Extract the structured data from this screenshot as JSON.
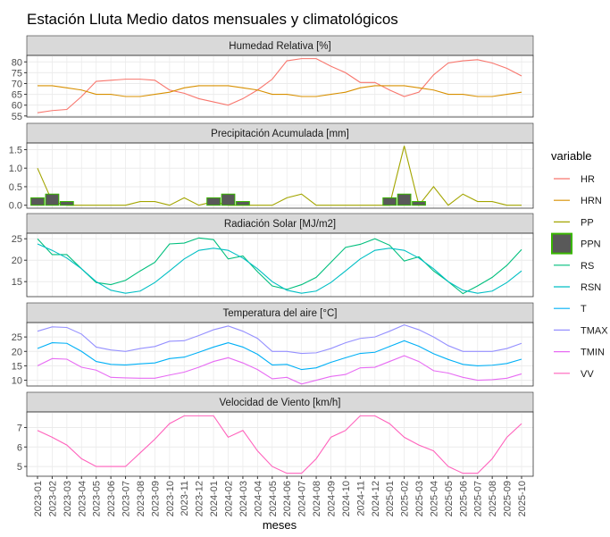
{
  "title": "Estación Lluta Medio datos mensuales y climatológicos",
  "x_label": "meses",
  "legend_title": "variable",
  "categories": [
    "2023-01",
    "2023-02",
    "2023-03",
    "2023-04",
    "2023-05",
    "2023-06",
    "2023-07",
    "2023-08",
    "2023-09",
    "2023-10",
    "2023-11",
    "2023-12",
    "2024-01",
    "2024-02",
    "2024-03",
    "2024-04",
    "2024-05",
    "2024-06",
    "2024-07",
    "2024-08",
    "2024-09",
    "2024-10",
    "2024-11",
    "2024-12",
    "2025-01",
    "2025-02",
    "2025-03",
    "2025-04",
    "2025-05",
    "2025-06",
    "2025-07",
    "2025-08",
    "2025-09",
    "2025-10"
  ],
  "chart_data": [
    {
      "type": "line",
      "title": "Humedad Relativa [%]",
      "ylim": [
        54.5,
        83
      ],
      "yticks": [
        55,
        60,
        65,
        70,
        75,
        80
      ],
      "grid": true,
      "series": [
        {
          "name": "HR",
          "color": "#F8766D",
          "values": [
            56.5,
            57.5,
            58,
            64,
            71,
            71.5,
            72,
            72,
            71.5,
            67,
            65.5,
            63,
            61.5,
            60,
            63,
            67,
            72,
            80.5,
            81.5,
            81.5,
            78,
            75,
            70.5,
            70.5,
            67,
            64,
            66,
            74,
            79.5,
            80.5,
            81,
            79.5,
            77,
            73.5
          ]
        },
        {
          "name": "HRN",
          "color": "#D89000",
          "values": [
            69,
            69,
            68,
            67,
            65,
            65,
            64,
            64,
            65,
            66,
            68,
            69,
            69,
            69,
            68,
            67,
            65,
            65,
            64,
            64,
            65,
            66,
            68,
            69,
            69,
            69,
            68,
            67,
            65,
            65,
            64,
            64,
            65,
            66
          ]
        }
      ]
    },
    {
      "type": "line",
      "title": "Precipitación Acumulada [mm]",
      "ylim": [
        -0.08,
        1.68
      ],
      "yticks": [
        {
          "value": 0,
          "label": "0.0"
        },
        0.5,
        {
          "value": 1,
          "label": "1.0"
        },
        1.5
      ],
      "grid": true,
      "series": [
        {
          "name": "PP",
          "color": "#A3A500",
          "values": [
            1.0,
            0.1,
            0,
            0,
            0,
            0,
            0,
            0.1,
            0.1,
            0,
            0.2,
            0,
            0.1,
            0,
            0,
            0,
            0,
            0.2,
            0.3,
            0,
            0,
            0,
            0,
            0,
            0,
            1.6,
            0,
            0.5,
            0,
            0.3,
            0.1,
            0.1,
            0,
            0
          ]
        },
        {
          "name": "PPN",
          "color": "#39B600",
          "fill": "#595959",
          "type": "bar",
          "values": [
            0.2,
            0.3,
            0.1,
            0,
            0,
            0,
            0,
            0,
            0,
            0,
            0,
            0,
            0.2,
            0.3,
            0.1,
            0,
            0,
            0,
            0,
            0,
            0,
            0,
            0,
            0,
            0.2,
            0.3,
            0.1,
            0,
            0,
            0,
            0,
            0,
            0,
            0
          ]
        }
      ]
    },
    {
      "type": "line",
      "title": "Radiación Solar [MJ/m2]",
      "ylim": [
        11.5,
        26.3
      ],
      "yticks": [
        15,
        20,
        25
      ],
      "grid": true,
      "series": [
        {
          "name": "RS",
          "color": "#00BF7D",
          "values": [
            25,
            21.3,
            21.3,
            18,
            14.8,
            14.3,
            15.3,
            17.5,
            19.5,
            23.8,
            24,
            25.2,
            24.8,
            20.3,
            21,
            17.3,
            14,
            13.2,
            14.3,
            16,
            19.5,
            23,
            23.7,
            25,
            23.5,
            19.8,
            20.8,
            17.5,
            15,
            12.2,
            14,
            16,
            18.8,
            22.5
          ]
        },
        {
          "name": "RSN",
          "color": "#00BFC4",
          "values": [
            23.8,
            22.3,
            20.5,
            18,
            15,
            13,
            12.3,
            12.8,
            14.8,
            17.5,
            20.3,
            22.3,
            22.8,
            22.3,
            20.5,
            18,
            15,
            13,
            12.3,
            12.8,
            14.8,
            17.5,
            20.3,
            22.3,
            22.8,
            22.3,
            20.5,
            18,
            15,
            13,
            12.3,
            12.8,
            14.8,
            17.5
          ]
        }
      ]
    },
    {
      "type": "line",
      "title": "Temperatura del aire [°C]",
      "ylim": [
        8,
        30
      ],
      "yticks": [
        10,
        15,
        20,
        25
      ],
      "grid": true,
      "series": [
        {
          "name": "T",
          "color": "#00B0F6",
          "values": [
            21,
            23,
            22.8,
            20,
            16.5,
            15.5,
            15.3,
            15.7,
            16,
            17.5,
            18,
            19.7,
            21.5,
            23,
            21.5,
            19,
            15.3,
            15.5,
            13.7,
            14.3,
            16.2,
            17.8,
            19.3,
            19.7,
            21.7,
            23.7,
            21.8,
            19.2,
            17.2,
            15.5,
            15,
            15.2,
            15.8,
            17.3
          ]
        },
        {
          "name": "TMAX",
          "color": "#9590FF",
          "values": [
            27,
            28.5,
            28.3,
            26,
            21.5,
            20.5,
            20,
            21,
            21.7,
            23.5,
            23.7,
            25.5,
            27.5,
            28.8,
            27,
            24.5,
            20,
            20,
            19.3,
            19.5,
            21,
            23,
            24.5,
            25,
            27,
            29.2,
            27.5,
            25,
            22,
            20,
            20,
            20,
            21,
            22.8
          ]
        },
        {
          "name": "TMIN",
          "color": "#E76BF3",
          "values": [
            15,
            17.5,
            17.3,
            14.5,
            13.5,
            11,
            10.8,
            10.7,
            10.7,
            11.8,
            12.8,
            14.5,
            16.5,
            17.8,
            16,
            13.7,
            10.5,
            11,
            8.7,
            10,
            11.3,
            12,
            14.3,
            14.5,
            16.5,
            18.5,
            16.5,
            13.3,
            12.5,
            11,
            10,
            10.2,
            10.7,
            12.2
          ]
        }
      ]
    },
    {
      "type": "line",
      "title": "Velocidad de Viento [km/h]",
      "ylim": [
        4.5,
        7.8
      ],
      "yticks": [
        5,
        6,
        7
      ],
      "grid": true,
      "series": [
        {
          "name": "VV",
          "color": "#FF62BC",
          "values": [
            6.85,
            6.5,
            6.1,
            5.4,
            5.0,
            5.0,
            5.0,
            5.7,
            6.4,
            7.2,
            7.6,
            7.6,
            7.6,
            6.5,
            6.85,
            5.8,
            5.0,
            4.65,
            4.65,
            5.4,
            6.5,
            6.85,
            7.6,
            7.6,
            7.2,
            6.5,
            6.1,
            5.8,
            5.0,
            4.65,
            4.65,
            5.4,
            6.5,
            7.2
          ]
        }
      ]
    }
  ]
}
